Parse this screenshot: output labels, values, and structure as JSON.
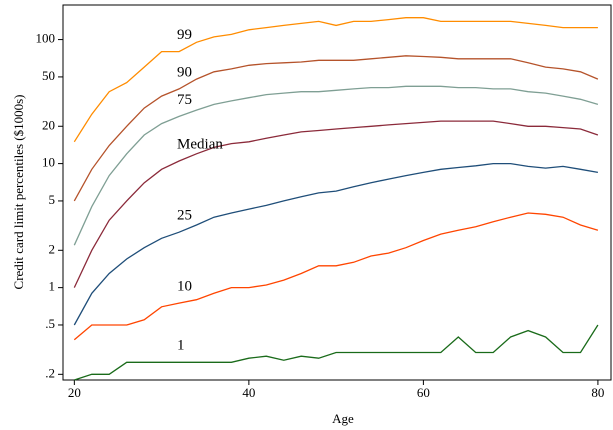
{
  "chart_data": {
    "type": "line",
    "xlabel": "Age",
    "ylabel": "Credit card  limit percentiles ($1000s)",
    "x": [
      20,
      22,
      24,
      26,
      28,
      30,
      32,
      34,
      36,
      38,
      40,
      42,
      44,
      46,
      48,
      50,
      52,
      54,
      56,
      58,
      60,
      62,
      64,
      66,
      68,
      70,
      72,
      74,
      76,
      78,
      80
    ],
    "xlim": [
      18.7,
      81.5
    ],
    "xticks": [
      20,
      40,
      60,
      80
    ],
    "ylim": [
      0.18,
      190
    ],
    "log_scale": true,
    "yticks": [
      {
        "value": 0.2,
        "label": ".2"
      },
      {
        "value": 0.5,
        "label": ".5"
      },
      1,
      2,
      5,
      10,
      20,
      50,
      100
    ],
    "series": [
      {
        "name": "99",
        "color": "#ff8c00",
        "values": [
          15,
          25,
          38,
          45,
          60,
          80,
          80,
          95,
          105,
          110,
          120,
          125,
          130,
          135,
          140,
          130,
          140,
          140,
          145,
          150,
          150,
          140,
          140,
          140,
          140,
          140,
          135,
          130,
          125,
          125,
          125
        ]
      },
      {
        "name": "90",
        "color": "#b5532b",
        "values": [
          5,
          9,
          14,
          20,
          28,
          35,
          40,
          48,
          55,
          58,
          62,
          64,
          65,
          66,
          68,
          68,
          68,
          70,
          72,
          74,
          73,
          72,
          70,
          70,
          70,
          70,
          65,
          60,
          58,
          55,
          48
        ]
      },
      {
        "name": "75",
        "color": "#7f9f94",
        "values": [
          2.2,
          4.5,
          8,
          12,
          17,
          21,
          24,
          27,
          30,
          32,
          34,
          36,
          37,
          38,
          38,
          39,
          40,
          41,
          41,
          42,
          42,
          42,
          41,
          41,
          40,
          40,
          38,
          37,
          35,
          33,
          30
        ]
      },
      {
        "name": "Median",
        "color": "#8b2a3a",
        "values": [
          1,
          2,
          3.5,
          5,
          7,
          9,
          10.5,
          12,
          13.5,
          14.5,
          15,
          16,
          17,
          18,
          18.5,
          19,
          19.5,
          20,
          20.5,
          21,
          21.5,
          22,
          22,
          22,
          22,
          21,
          20,
          20,
          19.5,
          19,
          17
        ]
      },
      {
        "name": "25",
        "color": "#1f4e79",
        "values": [
          0.5,
          0.9,
          1.3,
          1.7,
          2.1,
          2.5,
          2.8,
          3.2,
          3.7,
          4,
          4.3,
          4.6,
          5,
          5.4,
          5.8,
          6,
          6.5,
          7,
          7.5,
          8,
          8.5,
          9,
          9.3,
          9.6,
          10,
          10,
          9.5,
          9.2,
          9.5,
          9,
          8.5
        ]
      },
      {
        "name": "10",
        "color": "#ff4500",
        "values": [
          0.38,
          0.5,
          0.5,
          0.5,
          0.55,
          0.7,
          0.75,
          0.8,
          0.9,
          1,
          1,
          1.05,
          1.15,
          1.3,
          1.5,
          1.5,
          1.6,
          1.8,
          1.9,
          2.1,
          2.4,
          2.7,
          2.9,
          3.1,
          3.4,
          3.7,
          4,
          3.9,
          3.7,
          3.2,
          2.9
        ]
      },
      {
        "name": "1",
        "color": "#1a6b1a",
        "values": [
          0.18,
          0.2,
          0.2,
          0.25,
          0.25,
          0.25,
          0.25,
          0.25,
          0.25,
          0.25,
          0.27,
          0.28,
          0.26,
          0.28,
          0.27,
          0.3,
          0.3,
          0.3,
          0.3,
          0.3,
          0.3,
          0.3,
          0.4,
          0.3,
          0.3,
          0.4,
          0.45,
          0.4,
          0.3,
          0.3,
          0.5
        ]
      }
    ]
  }
}
